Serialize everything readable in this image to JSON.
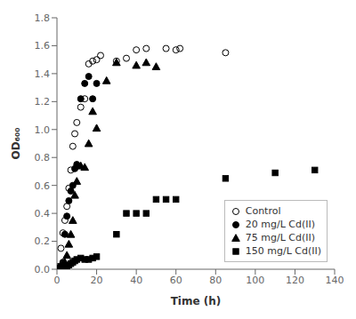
{
  "chart_data": {
    "type": "scatter",
    "xlabel": "Time (h)",
    "ylabel": "OD₆₀₀",
    "xlim": [
      0,
      140
    ],
    "ylim": [
      0.0,
      1.8
    ],
    "xticks": [
      0,
      20,
      40,
      60,
      80,
      100,
      120,
      140
    ],
    "yticks": [
      {
        "value": 0.0,
        "label": "0.0"
      },
      0.2,
      0.4,
      0.6,
      0.8,
      {
        "value": 1.0,
        "label": "1.0"
      },
      1.2,
      1.4,
      1.6,
      1.8
    ],
    "grid": false,
    "legend": "lower right",
    "series": [
      {
        "name": "Control",
        "color": "#000000",
        "marker": "circle_open",
        "x": [
          1,
          2,
          3,
          4,
          5,
          6,
          7,
          8,
          9,
          10,
          12,
          14,
          16,
          18,
          20,
          22,
          30,
          35,
          40,
          45,
          55,
          60,
          62,
          85
        ],
        "values": [
          0.02,
          0.15,
          0.26,
          0.35,
          0.45,
          0.58,
          0.71,
          0.88,
          0.97,
          1.05,
          1.16,
          1.22,
          1.47,
          1.49,
          1.5,
          1.53,
          1.49,
          1.51,
          1.57,
          1.58,
          1.58,
          1.57,
          1.58,
          1.55
        ]
      },
      {
        "name": "20 mg/L Cd(II)",
        "color": "#000000",
        "marker": "circle",
        "x": [
          1,
          2,
          3,
          4,
          5,
          6,
          7,
          8,
          9,
          10,
          12,
          14,
          16,
          18,
          20
        ],
        "values": [
          0.01,
          0.02,
          0.05,
          0.25,
          0.38,
          0.49,
          0.56,
          0.6,
          0.72,
          0.75,
          1.22,
          1.33,
          1.38,
          1.22,
          1.33
        ]
      },
      {
        "name": "75 mg/L Cd(II)",
        "color": "#000000",
        "marker": "triangle",
        "x": [
          1,
          2,
          3,
          4,
          5,
          6,
          7,
          8,
          9,
          10,
          12,
          14,
          16,
          18,
          20,
          25,
          30,
          40,
          45,
          50
        ],
        "values": [
          0.01,
          0.01,
          0.02,
          0.05,
          0.1,
          0.18,
          0.25,
          0.35,
          0.53,
          0.63,
          0.74,
          0.73,
          0.9,
          1.13,
          1.01,
          1.35,
          1.48,
          1.46,
          1.48,
          1.45
        ]
      },
      {
        "name": "150 mg/L Cd(II)",
        "color": "#000000",
        "marker": "square",
        "x": [
          1,
          2,
          3,
          4,
          5,
          6,
          7,
          8,
          9,
          10,
          12,
          14,
          16,
          18,
          20,
          30,
          35,
          40,
          45,
          50,
          55,
          60,
          85,
          110,
          130
        ],
        "values": [
          0.01,
          0.01,
          0.01,
          0.02,
          0.02,
          0.03,
          0.04,
          0.05,
          0.06,
          0.07,
          0.08,
          0.07,
          0.07,
          0.08,
          0.09,
          0.25,
          0.4,
          0.4,
          0.4,
          0.5,
          0.5,
          0.5,
          0.65,
          0.69,
          0.71
        ]
      }
    ]
  }
}
